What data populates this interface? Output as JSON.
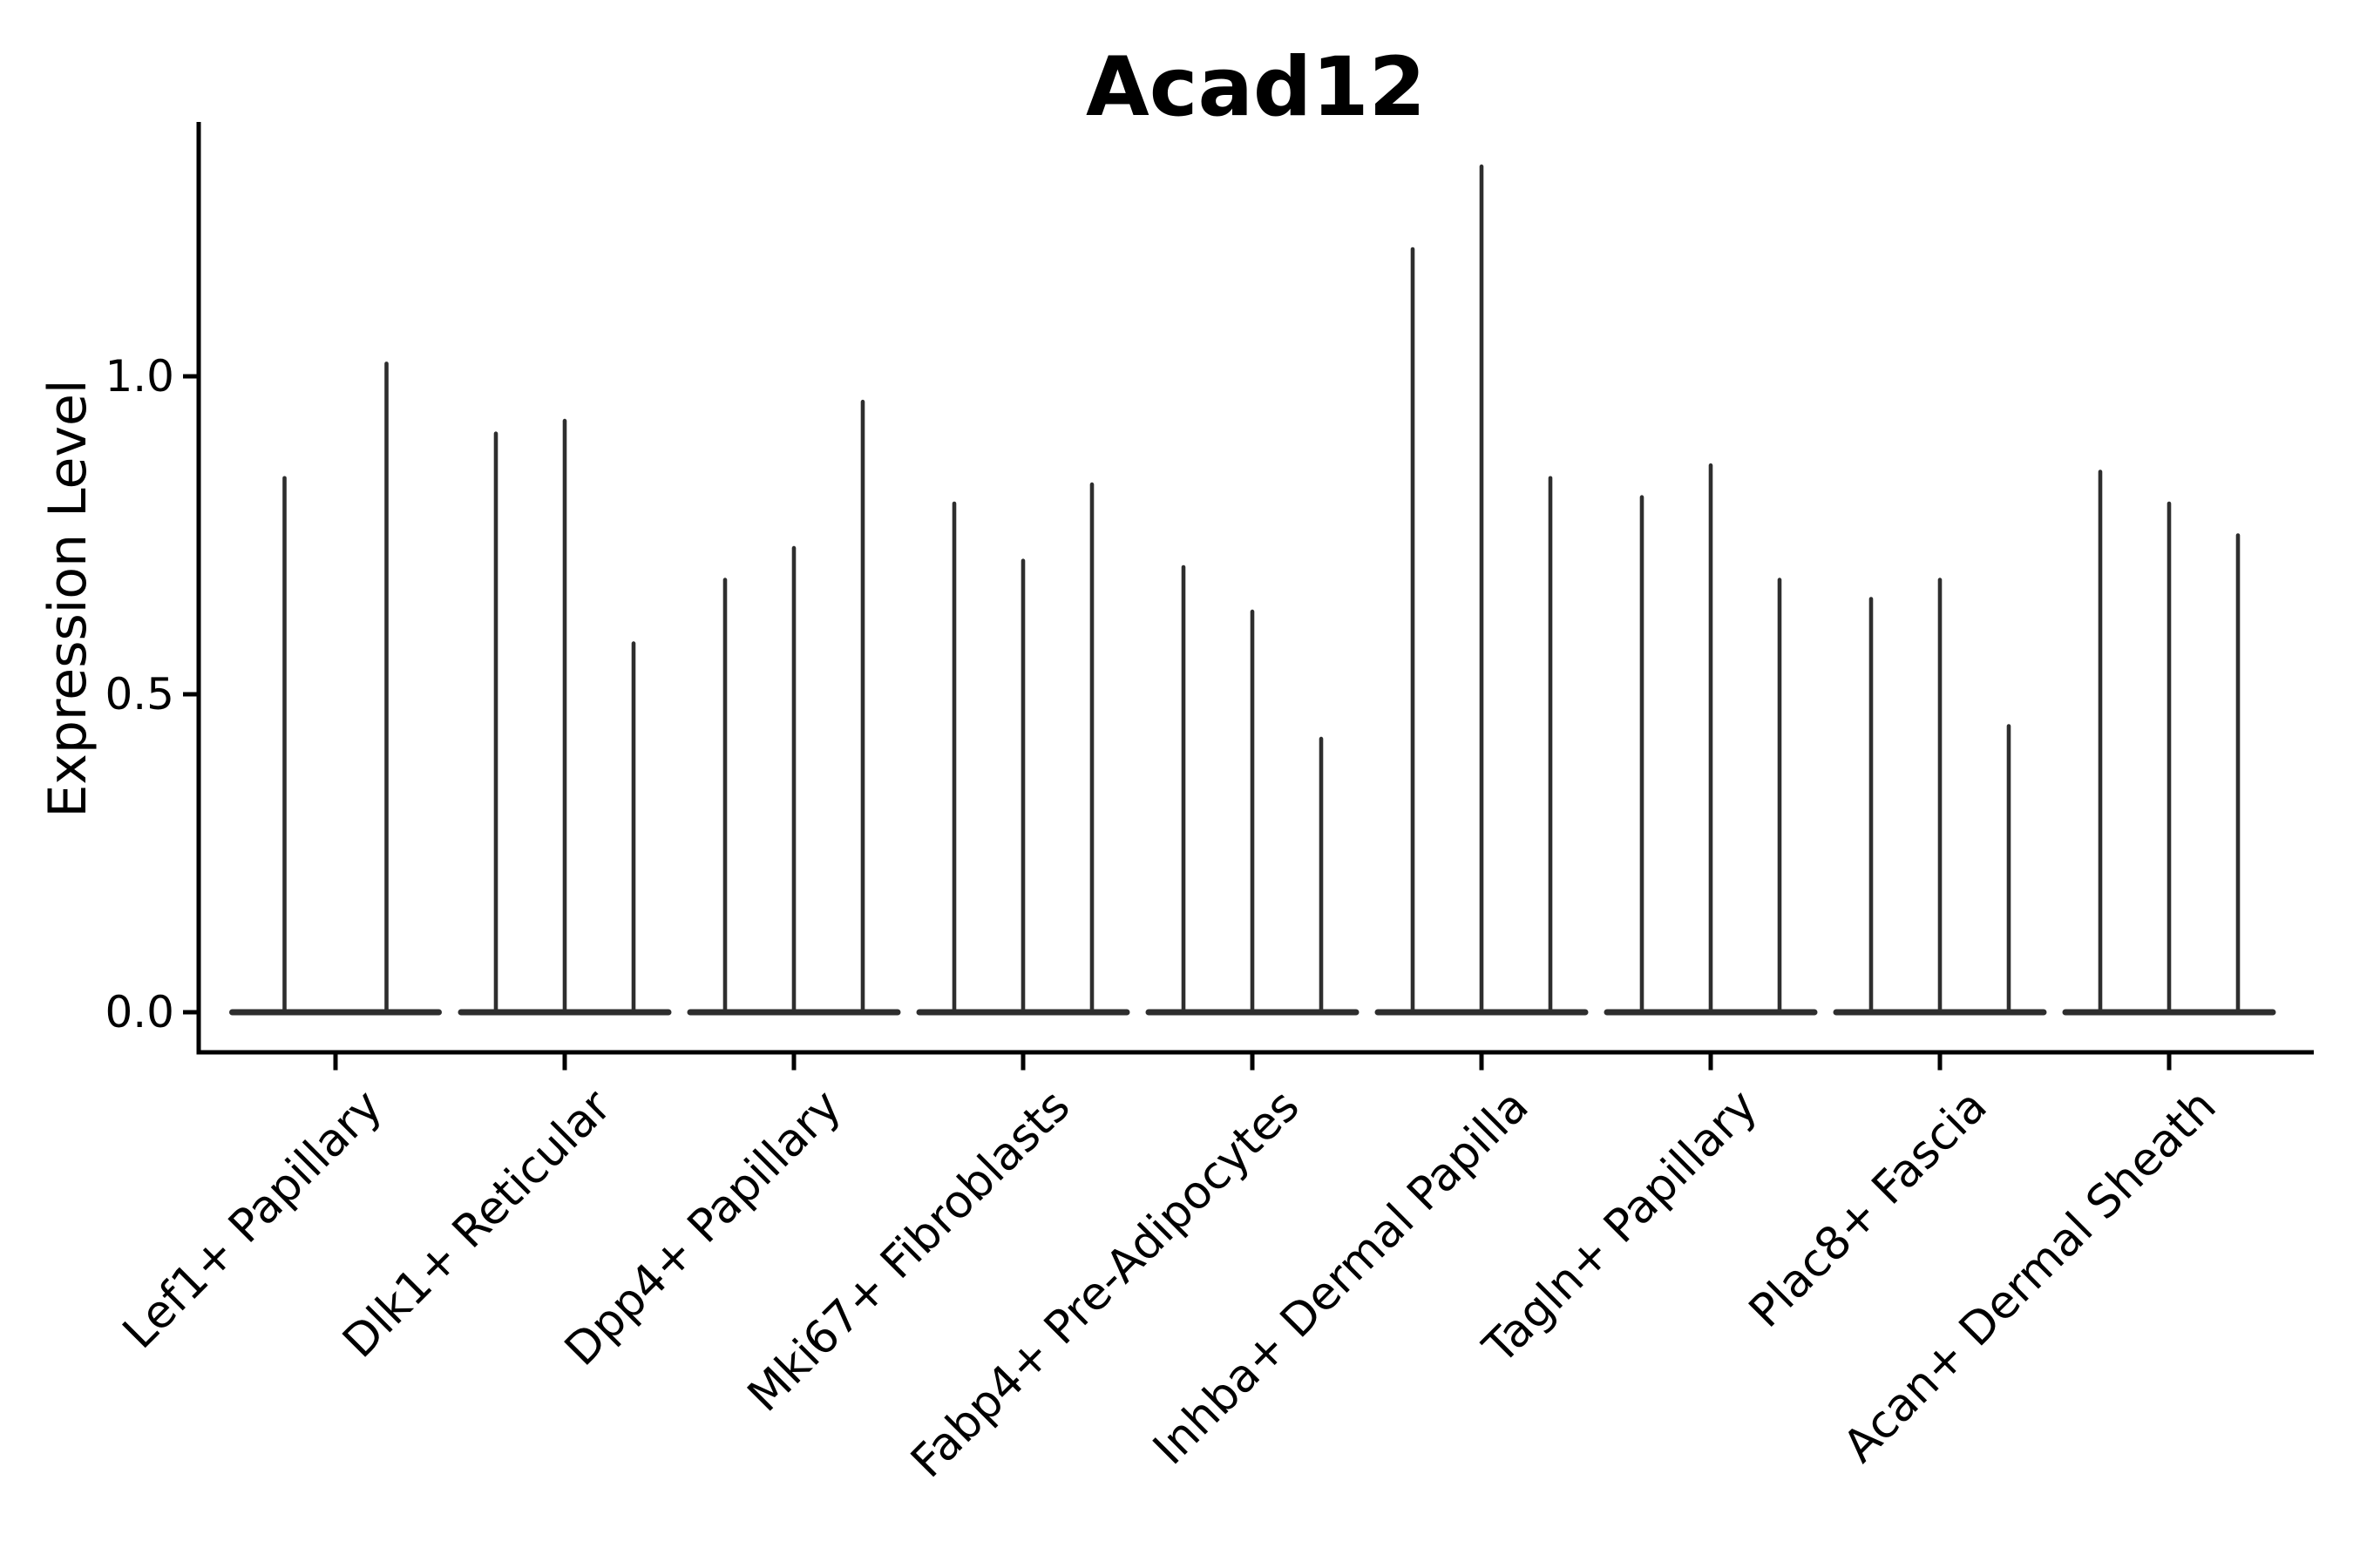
{
  "chart_data": {
    "type": "violin",
    "title": "Acad12",
    "ylabel": "Expression Level",
    "xlabel": "",
    "ytick_labels": [
      "0.0",
      "0.5",
      "1.0"
    ],
    "ytick_values": [
      0.0,
      0.5,
      1.0
    ],
    "ylim": [
      -0.063,
      1.4
    ],
    "grid": false,
    "legend": null,
    "background_color": "#ffffff",
    "colors": {
      "violin": "#2e2e2e",
      "axis": "#000000",
      "text": "#000000"
    },
    "categories": [
      "Lef1+ Papillary",
      "Dlk1+ Reticular",
      "Dpp4+ Papillary",
      "Mki67+ Fibroblasts",
      "Fabp4+ Pre-Adipocytes",
      "Inhba+ Dermal Papilla",
      "Tagln+ Papillary",
      "Plac8+ Fascia",
      "Acan+ Dermal Sheath"
    ],
    "series": [
      {
        "category": "Lef1+ Papillary",
        "violin_max_expression": [
          0.84,
          1.02
        ]
      },
      {
        "category": "Dlk1+ Reticular",
        "violin_max_expression": [
          0.91,
          0.93,
          0.58
        ]
      },
      {
        "category": "Dpp4+ Papillary",
        "violin_max_expression": [
          0.68,
          0.73,
          0.96
        ]
      },
      {
        "category": "Mki67+ Fibroblasts",
        "violin_max_expression": [
          0.8,
          0.71,
          0.83
        ]
      },
      {
        "category": "Fabp4+ Pre-Adipocytes",
        "violin_max_expression": [
          0.7,
          0.63,
          0.43
        ]
      },
      {
        "category": "Inhba+ Dermal Papilla",
        "violin_max_expression": [
          1.2,
          1.33,
          0.84
        ]
      },
      {
        "category": "Tagln+ Papillary",
        "violin_max_expression": [
          0.81,
          0.86,
          0.68
        ]
      },
      {
        "category": "Plac8+ Fascia",
        "violin_max_expression": [
          0.65,
          0.68,
          0.45
        ]
      },
      {
        "category": "Acan+ Dermal Sheath",
        "violin_max_expression": [
          0.85,
          0.8,
          0.75
        ]
      }
    ],
    "violin_shape_note": "Each violin is wide and flat at expression 0 and tapers into a thin vertical spike up to its max expression value."
  }
}
